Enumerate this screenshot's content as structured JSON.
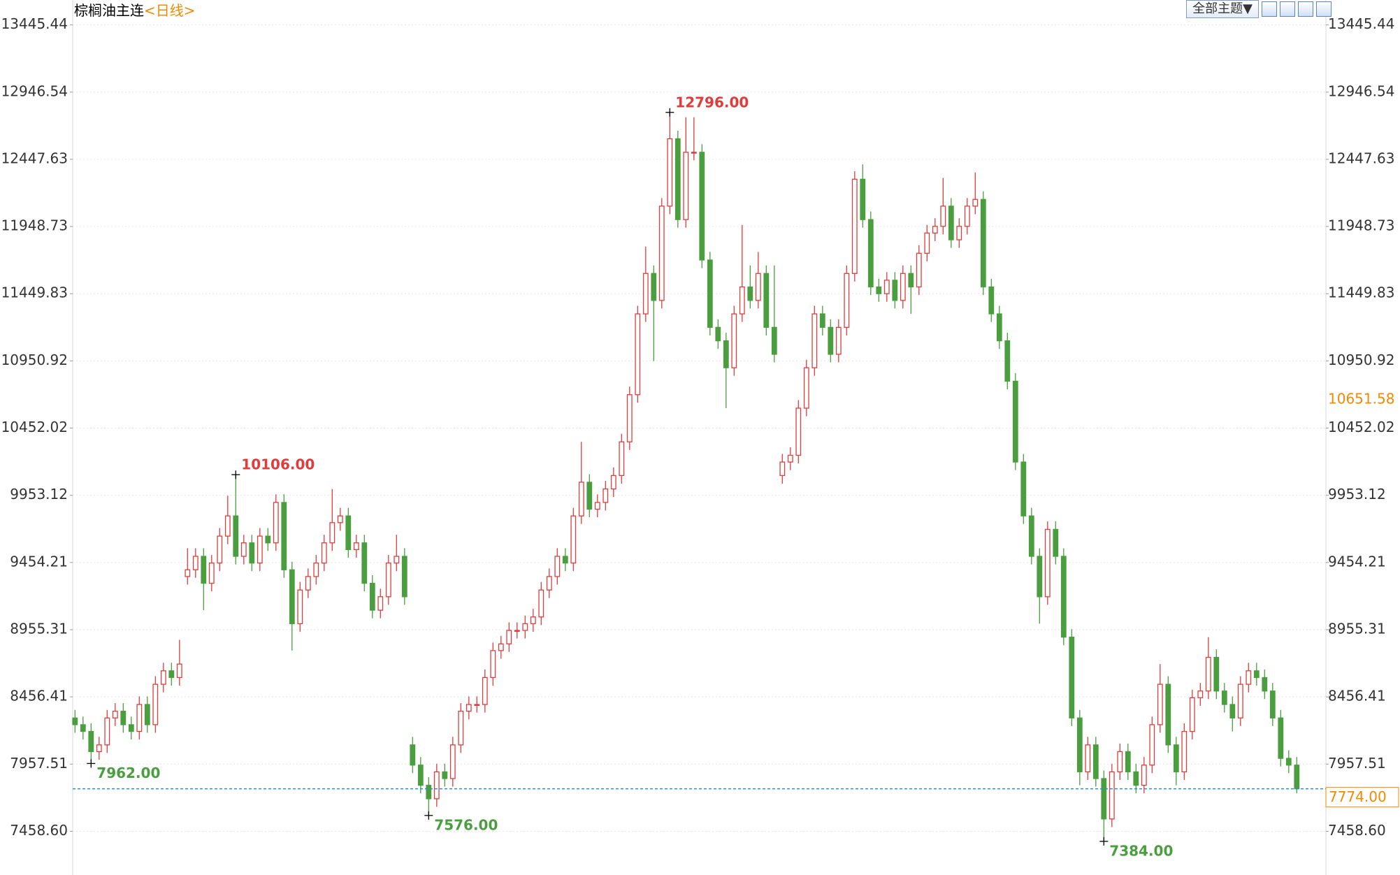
{
  "toolbar": {
    "theme": "全部主题▼"
  },
  "chart_data": {
    "type": "candlestick",
    "title": "棕榈油主连",
    "subtitle": "<日线>",
    "up_color": "#e03c3c",
    "down_color": "#4a9e3f",
    "grid": true,
    "ylim": [
      7134,
      13498
    ],
    "yticks": [
      13445.44,
      12946.54,
      12447.63,
      11948.73,
      11449.83,
      10950.92,
      10452.02,
      9953.12,
      9454.21,
      8955.31,
      8456.41,
      7957.51,
      {
        "value": 7458.6,
        "label": "7458.60"
      }
    ],
    "open": [
      8300,
      8250,
      8200,
      8050,
      8100,
      8300,
      8350,
      8250,
      8200,
      8400,
      8250,
      8550,
      8650,
      8600,
      9350,
      9400,
      9500,
      9300,
      9450,
      9650,
      9800,
      9500,
      9600,
      9450,
      9650,
      9600,
      9900,
      9400,
      9000,
      9250,
      9350,
      9450,
      9600,
      9750,
      9800,
      9550,
      9600,
      9300,
      9100,
      9200,
      9450,
      9500,
      8100,
      7950,
      7800,
      7700,
      7900,
      7850,
      8100,
      8350,
      8400,
      8400,
      8600,
      8800,
      8850,
      8950,
      8950,
      9000,
      9050,
      9250,
      9350,
      9500,
      9450,
      9800,
      10050,
      9850,
      9900,
      10000,
      10100,
      10350,
      10700,
      11300,
      11600,
      11400,
      12100,
      12600,
      12000,
      12500,
      12500,
      11700,
      11200,
      11100,
      10900,
      11300,
      11500,
      11400,
      11600,
      11200,
      10100,
      10200,
      10250,
      10600,
      10900,
      11300,
      11200,
      11000,
      11200,
      11600,
      12300,
      12000,
      11500,
      11450,
      11550,
      11400,
      11600,
      11500,
      11750,
      11900,
      11950,
      12100,
      11850,
      11950,
      12100,
      12150,
      11500,
      11300,
      11100,
      10800,
      10200,
      9800,
      9500,
      9200,
      9700,
      9500,
      8900,
      8300,
      7900,
      8100,
      7850,
      7550,
      7900,
      8050,
      7900,
      7800,
      7950,
      8250,
      8550,
      8100,
      7900,
      8200,
      8450,
      8500,
      8750,
      8500,
      8400,
      8300,
      8550,
      8650,
      8600,
      8500,
      8300,
      8000,
      7950
    ],
    "high": [
      8360,
      8310,
      8260,
      8160,
      8360,
      8410,
      8410,
      8310,
      8460,
      8460,
      8610,
      8710,
      8710,
      8880,
      9560,
      9560,
      9560,
      9510,
      9710,
      9950,
      10106,
      9660,
      9660,
      9710,
      9710,
      9960,
      9960,
      9460,
      9310,
      9410,
      9510,
      9660,
      10000,
      9860,
      9860,
      9660,
      9660,
      9360,
      9260,
      9510,
      9660,
      9560,
      8160,
      8010,
      7860,
      7960,
      7960,
      8160,
      8410,
      8460,
      8460,
      8660,
      8860,
      8910,
      9010,
      9010,
      9060,
      9110,
      9310,
      9410,
      9560,
      9560,
      9860,
      10350,
      10110,
      9960,
      10060,
      10160,
      10410,
      10760,
      11360,
      11800,
      11660,
      12160,
      12796,
      12660,
      12760,
      12760,
      12560,
      11760,
      11260,
      11160,
      11360,
      11960,
      11660,
      11760,
      11660,
      11660,
      10260,
      10310,
      10660,
      10960,
      11360,
      11360,
      11260,
      11260,
      11660,
      12360,
      12410,
      12060,
      11560,
      11610,
      11610,
      11660,
      11660,
      11810,
      11960,
      12010,
      12310,
      12160,
      12010,
      12160,
      12350,
      12210,
      11560,
      11360,
      11160,
      10860,
      10260,
      9860,
      9560,
      9760,
      9760,
      9560,
      8960,
      8360,
      8160,
      8160,
      7910,
      7960,
      8110,
      8110,
      7960,
      8010,
      8310,
      8700,
      8610,
      8160,
      8260,
      8510,
      8560,
      8900,
      8810,
      8560,
      8460,
      8610,
      8710,
      8710,
      8660,
      8560,
      8360,
      8060,
      8010
    ],
    "low": [
      8190,
      8140,
      7962,
      7990,
      8040,
      8240,
      8190,
      8140,
      8140,
      8190,
      8190,
      8490,
      8540,
      8540,
      9290,
      9340,
      9100,
      9240,
      9390,
      9590,
      9440,
      9440,
      9390,
      9390,
      9540,
      9540,
      9340,
      8800,
      8940,
      9190,
      9290,
      9390,
      9540,
      9690,
      9490,
      9490,
      9240,
      9040,
      9040,
      9140,
      9390,
      9140,
      7890,
      7740,
      7576,
      7640,
      7790,
      7790,
      8040,
      8290,
      8340,
      8340,
      8540,
      8740,
      8790,
      8890,
      8890,
      8940,
      8990,
      9190,
      9290,
      9390,
      9390,
      9740,
      9790,
      9790,
      9840,
      9940,
      10040,
      10290,
      10640,
      11240,
      10950,
      11340,
      12040,
      11940,
      11940,
      12440,
      11640,
      11140,
      11040,
      10600,
      10840,
      11240,
      11340,
      11340,
      11140,
      10940,
      10040,
      10140,
      10190,
      10540,
      10840,
      11140,
      10940,
      10940,
      11140,
      11540,
      11940,
      11440,
      11390,
      11390,
      11340,
      11340,
      11300,
      11440,
      11690,
      11840,
      11890,
      11790,
      11790,
      11890,
      12040,
      11440,
      11240,
      11040,
      10740,
      10140,
      9740,
      9440,
      9000,
      9140,
      9440,
      8840,
      8240,
      7800,
      7840,
      7790,
      7384,
      7490,
      7840,
      7840,
      7740,
      7740,
      7890,
      8190,
      8040,
      7800,
      7840,
      8140,
      8390,
      8440,
      8440,
      8340,
      8200,
      8240,
      8490,
      8540,
      8440,
      8240,
      7940,
      7890,
      7740
    ],
    "close": [
      8250,
      8200,
      8050,
      8100,
      8300,
      8350,
      8250,
      8200,
      8400,
      8250,
      8550,
      8650,
      8600,
      8700,
      9400,
      9500,
      9300,
      9450,
      9650,
      9800,
      9500,
      9600,
      9450,
      9650,
      9600,
      9900,
      9400,
      9000,
      9250,
      9350,
      9450,
      9600,
      9750,
      9800,
      9550,
      9600,
      9300,
      9100,
      9200,
      9450,
      9500,
      9200,
      7950,
      7800,
      7700,
      7900,
      7850,
      8100,
      8350,
      8400,
      8400,
      8600,
      8800,
      8850,
      8950,
      8950,
      9000,
      9050,
      9250,
      9350,
      9500,
      9450,
      9800,
      10050,
      9850,
      9900,
      10000,
      10100,
      10350,
      10700,
      11300,
      11600,
      11400,
      12100,
      12600,
      12000,
      12500,
      12500,
      11700,
      11200,
      11100,
      10900,
      11300,
      11500,
      11400,
      11600,
      11200,
      11000,
      10200,
      10250,
      10600,
      10900,
      11300,
      11200,
      11000,
      11200,
      11600,
      12300,
      12000,
      11500,
      11450,
      11550,
      11400,
      11600,
      11500,
      11750,
      11900,
      11950,
      12100,
      11850,
      11950,
      12100,
      12150,
      11500,
      11300,
      11100,
      10800,
      10200,
      9800,
      9500,
      9200,
      9700,
      9500,
      8900,
      8300,
      7900,
      8100,
      7850,
      7550,
      7900,
      8050,
      7900,
      7800,
      7950,
      8250,
      8550,
      8100,
      7900,
      8200,
      8450,
      8500,
      8750,
      8500,
      8400,
      8300,
      8550,
      8650,
      8600,
      8500,
      8300,
      8000,
      7950,
      7774
    ],
    "high_marks": [
      {
        "value": 10106,
        "label": "10106.00"
      },
      {
        "value": 12796,
        "label": "12796.00"
      }
    ],
    "low_marks": [
      {
        "value": 7962,
        "label": "7962.00"
      },
      {
        "value": 7576,
        "label": "7576.00"
      },
      {
        "value": 7384,
        "label": "7384.00"
      }
    ],
    "last_price": {
      "value": 7774,
      "label": "7774.00"
    },
    "right_marker": 10651.58
  }
}
